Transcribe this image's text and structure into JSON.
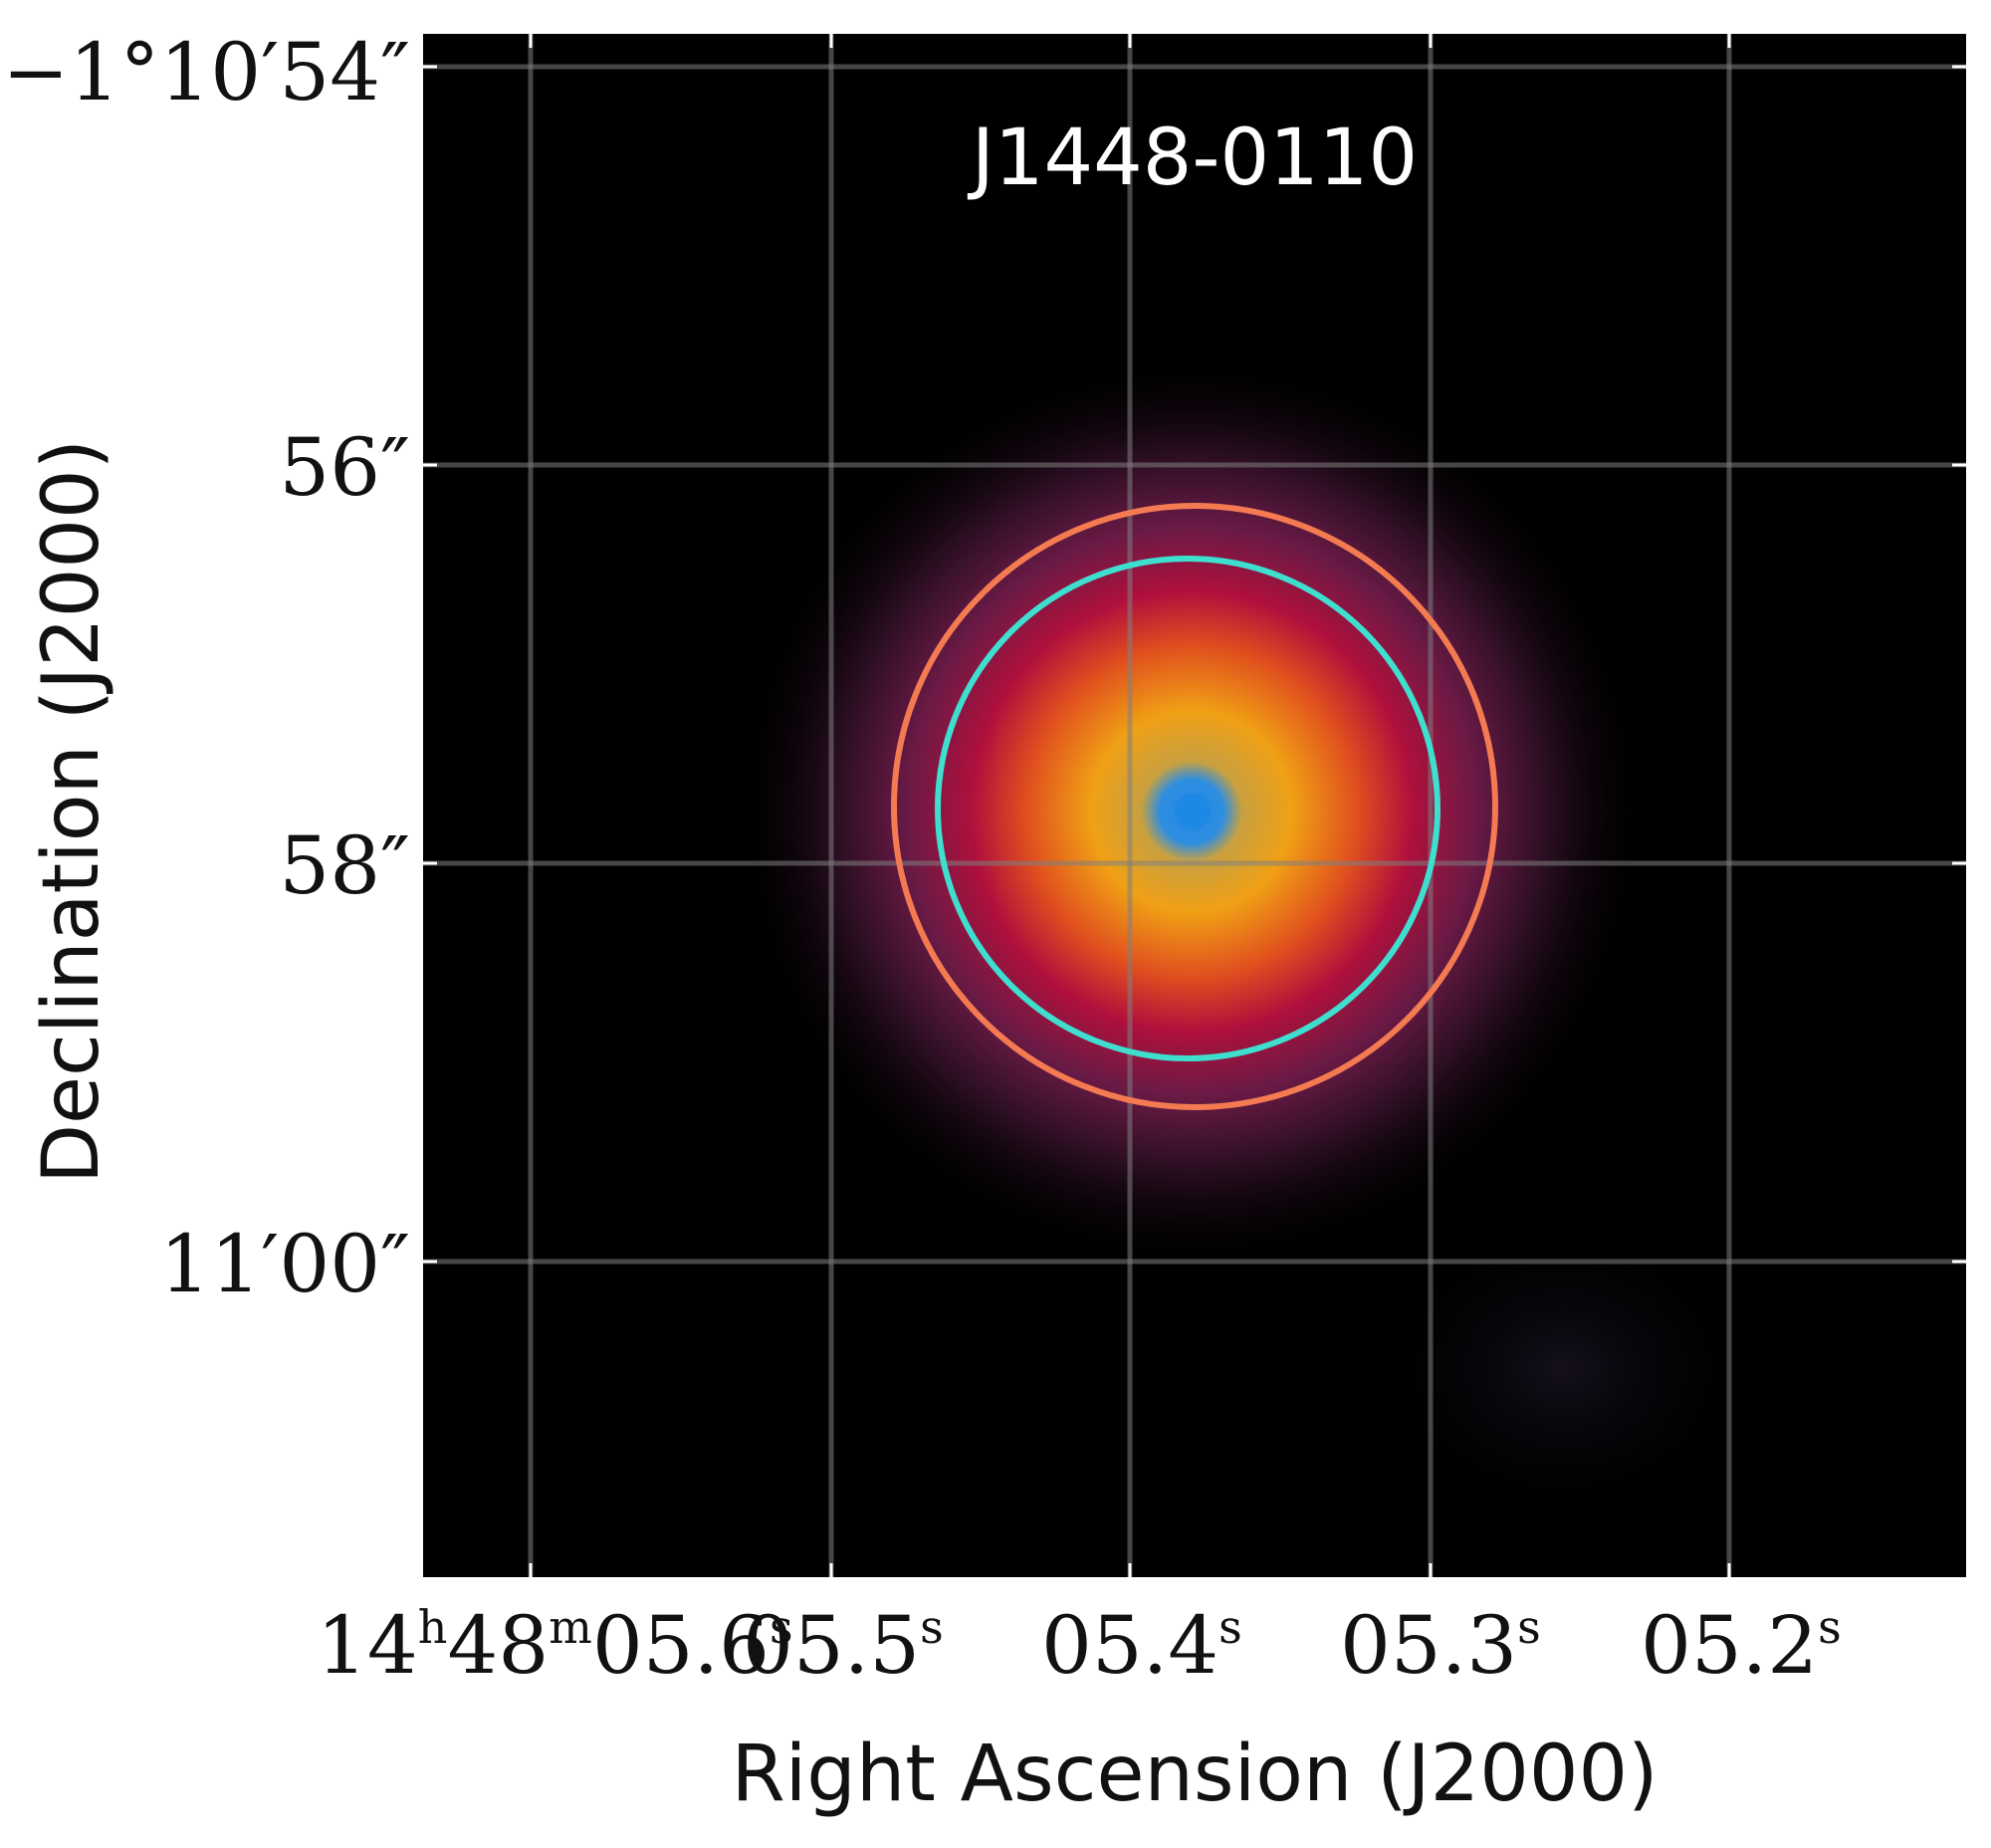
{
  "figure": {
    "title": "J1448-0110",
    "xlabel": "Right Ascension (J2000)",
    "ylabel": "Declination (J2000)",
    "colors": {
      "background": "#000000",
      "grid": "#808080",
      "outer_aperture": "#f47a52",
      "inner_aperture": "#3fdfd0",
      "core": "#1e88e5"
    },
    "x_ticks": [
      {
        "main": "14",
        "sup": "h",
        "main2": "48",
        "sup2": "m",
        "main3": "05.6",
        "sup3": "s"
      },
      {
        "main": "05.5",
        "sup": "s"
      },
      {
        "main": "05.4",
        "sup": "s"
      },
      {
        "main": "05.3",
        "sup": "s"
      },
      {
        "main": "05.2",
        "sup": "s"
      }
    ],
    "y_ticks": [
      "−1°10′54″",
      "56″",
      "58″",
      "11′00″"
    ]
  }
}
